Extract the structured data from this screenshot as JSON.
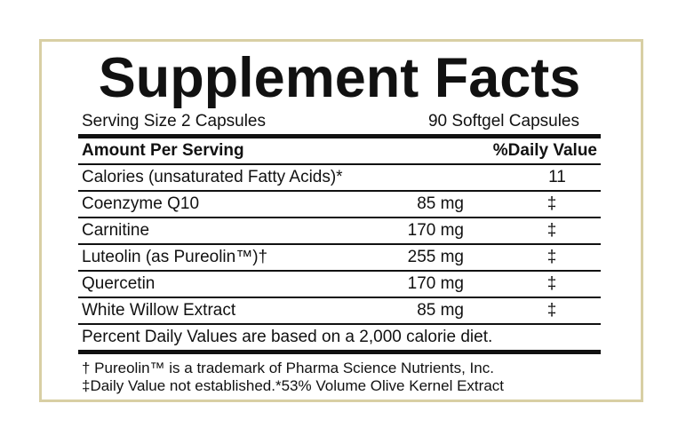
{
  "title": "Supplement Facts",
  "serving_size": "Serving Size 2 Capsules",
  "container": "90 Softgel Capsules",
  "header": {
    "amount": "Amount Per Serving",
    "daily_value": "%Daily Value"
  },
  "calories": {
    "name": "Calories (unsaturated Fatty Acids)*",
    "value": "11"
  },
  "ingredients": [
    {
      "name": "Coenzyme Q10",
      "amount": "85 mg",
      "dv": "‡"
    },
    {
      "name": "Carnitine",
      "amount": "170 mg",
      "dv": "‡"
    },
    {
      "name": "Luteolin (as Pureolin™)†",
      "amount": "255 mg",
      "dv": "‡"
    },
    {
      "name": "Quercetin",
      "amount": "170 mg",
      "dv": "‡"
    },
    {
      "name": "White Willow Extract",
      "amount": "85 mg",
      "dv": "‡"
    }
  ],
  "percent_note": "Percent Daily Values are based on a 2,000 calorie diet.",
  "footnotes": [
    "† Pureolin™ is a trademark of Pharma Science Nutrients, Inc.",
    "‡Daily Value not established.*53% Volume Olive Kernel Extract"
  ],
  "colors": {
    "frame": "#d8cfa4",
    "text": "#111111"
  }
}
